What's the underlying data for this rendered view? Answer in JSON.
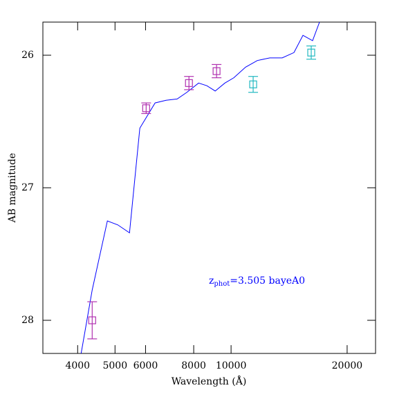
{
  "chart_data": {
    "type": "scatter",
    "x_label": "Wavelength (Å)",
    "y_label": "AB magnitude",
    "x_log": true,
    "y_inverted": true,
    "xlim": [
      3250,
      23700
    ],
    "ylim": [
      28.25,
      25.75
    ],
    "xticks": [
      4000,
      5000,
      6000,
      8000,
      10000,
      20000
    ],
    "yticks": [
      26,
      27,
      28
    ],
    "annotation": {
      "main": "z",
      "sub": "phot",
      "rest": "=3.505 bayeA0",
      "color": "#0000ff"
    },
    "series": [
      {
        "kind": "line",
        "color": "#0000ff",
        "x": [
          4084,
          4364,
          4777,
          5083,
          5452,
          5799,
          6352,
          6784,
          7247,
          7679,
          8237,
          8654,
          9096,
          9636,
          10166,
          10904,
          11698,
          12603,
          13570,
          14558,
          15362,
          16270,
          16960
        ],
        "values": [
          28.25,
          27.77,
          27.25,
          27.28,
          27.34,
          26.55,
          26.36,
          26.34,
          26.33,
          26.28,
          26.21,
          26.23,
          26.27,
          26.21,
          26.17,
          26.09,
          26.04,
          26.02,
          26.02,
          25.98,
          25.85,
          25.89,
          25.75
        ]
      },
      {
        "kind": "points",
        "color": "#b030b0",
        "x": [
          4363,
          6022,
          7776,
          9170
        ],
        "values": [
          28.0,
          26.4,
          26.21,
          26.12
        ],
        "errors": [
          0.14,
          0.04,
          0.05,
          0.05
        ]
      },
      {
        "kind": "points",
        "color": "#20b8c0",
        "x": [
          11410,
          16140
        ],
        "values": [
          26.22,
          25.98
        ],
        "errors": [
          0.06,
          0.05
        ]
      }
    ]
  }
}
